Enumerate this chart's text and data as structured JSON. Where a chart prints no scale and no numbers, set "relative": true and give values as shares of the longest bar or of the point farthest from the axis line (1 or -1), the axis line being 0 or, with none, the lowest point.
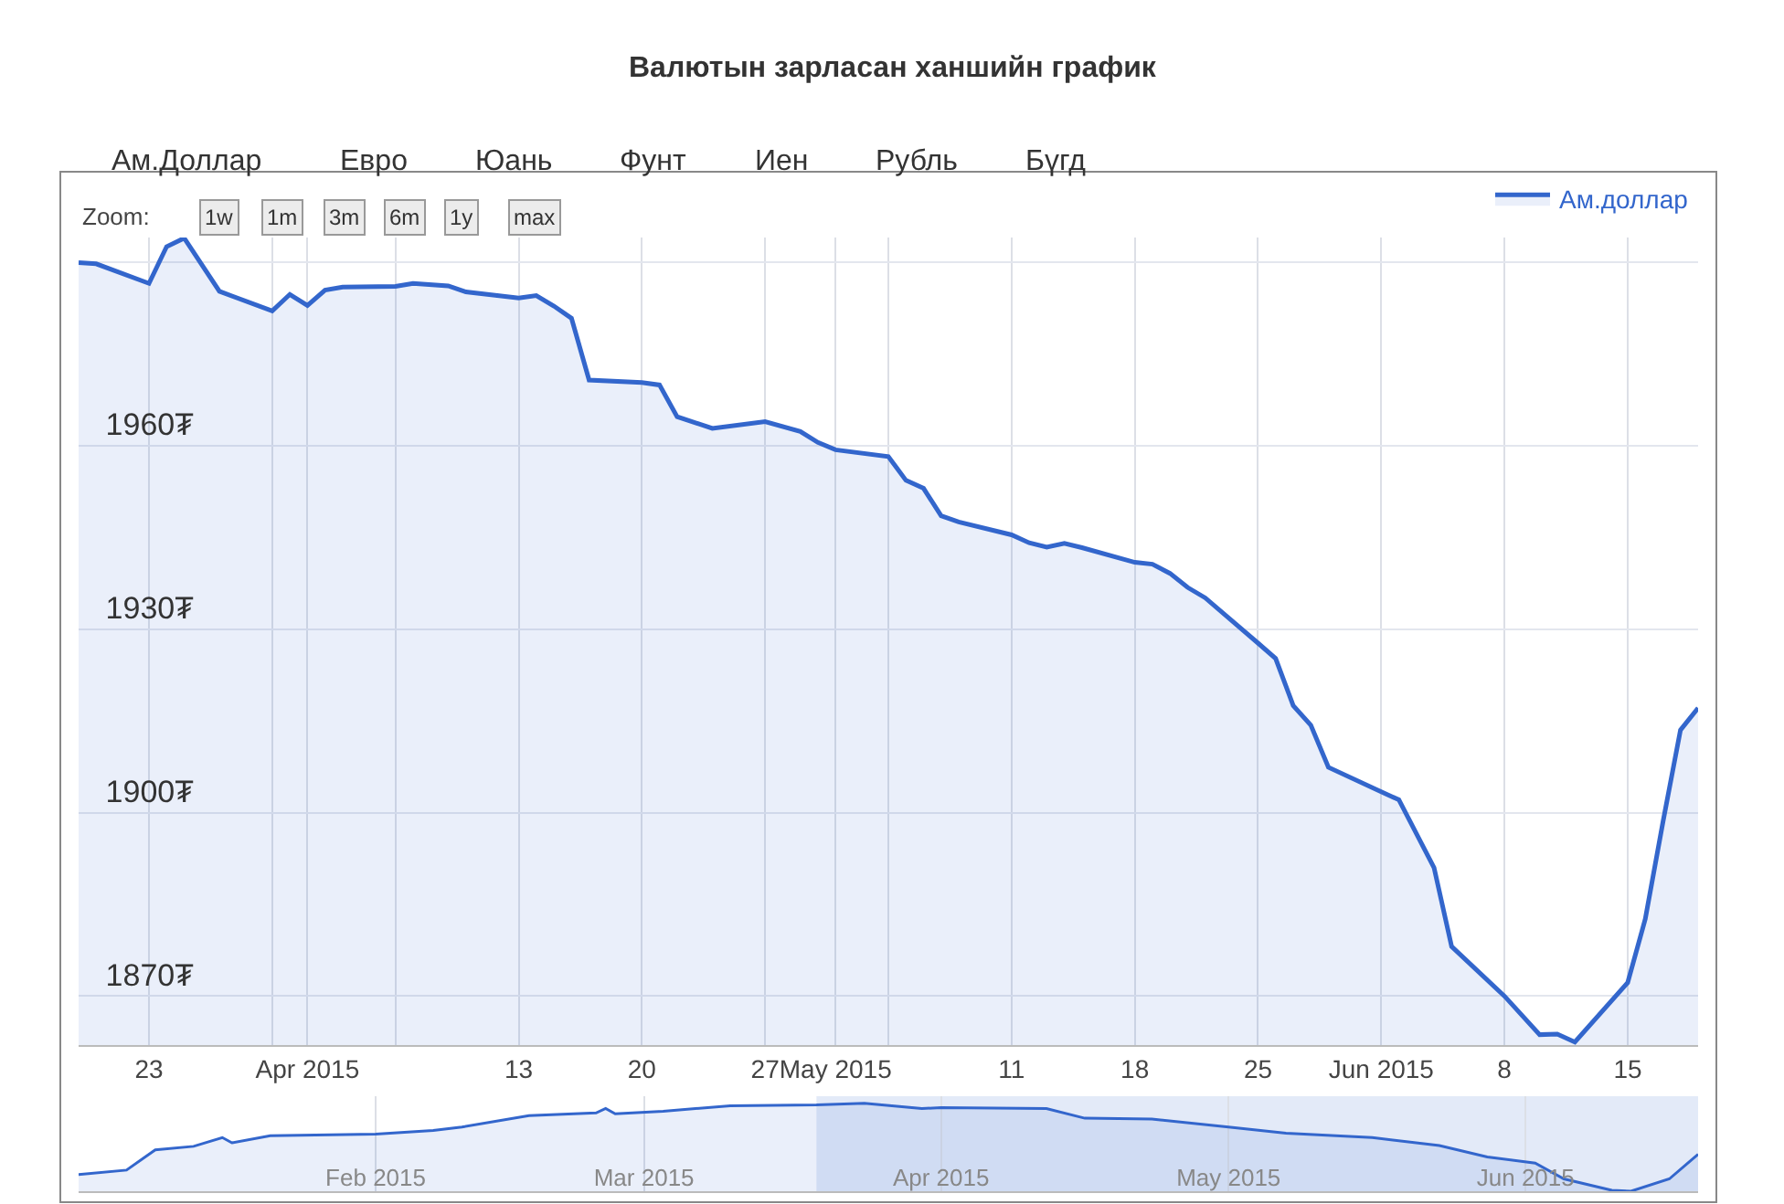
{
  "chart_data": [
    {
      "type": "area",
      "title": "Валютын зарласан ханшийн график",
      "annotations": [
        "Ам.Доллар",
        "Евро",
        "Юань",
        "Фунт",
        "Иен",
        "Рубль",
        "Бүгд",
        "Zoom:",
        "1w",
        "1m",
        "3m",
        "6m",
        "1y",
        "max"
      ],
      "x": [
        "2015-03-19",
        "2015-03-20",
        "2015-03-23",
        "2015-03-24",
        "2015-03-25",
        "2015-03-27",
        "2015-03-30",
        "2015-03-31",
        "2015-04-01",
        "2015-04-02",
        "2015-04-03",
        "2015-04-06",
        "2015-04-07",
        "2015-04-09",
        "2015-04-10",
        "2015-04-13",
        "2015-04-14",
        "2015-04-15",
        "2015-04-16",
        "2015-04-17",
        "2015-04-20",
        "2015-04-21",
        "2015-04-22",
        "2015-04-24",
        "2015-04-27",
        "2015-04-29",
        "2015-04-30",
        "2015-05-01",
        "2015-05-04",
        "2015-05-05",
        "2015-05-06",
        "2015-05-07",
        "2015-05-08",
        "2015-05-11",
        "2015-05-12",
        "2015-05-13",
        "2015-05-14",
        "2015-05-15",
        "2015-05-18",
        "2015-05-19",
        "2015-05-20",
        "2015-05-21",
        "2015-05-22",
        "2015-05-25",
        "2015-05-26",
        "2015-05-27",
        "2015-05-28",
        "2015-05-29",
        "2015-06-01",
        "2015-06-02",
        "2015-06-04",
        "2015-06-05",
        "2015-06-08",
        "2015-06-10",
        "2015-06-11",
        "2015-06-12",
        "2015-06-15",
        "2015-06-16",
        "2015-06-17",
        "2015-06-18",
        "2015-06-19"
      ],
      "series": [
        {
          "name": "Ам.доллар",
          "color": "#3366cc",
          "values": [
            1989.9,
            1989.7,
            1986.5,
            1992.5,
            1993.9,
            1985.2,
            1982.0,
            1984.7,
            1982.9,
            1985.4,
            1985.9,
            1986.0,
            1986.5,
            1986.1,
            1985.1,
            1984.1,
            1984.5,
            1982.8,
            1980.8,
            1970.7,
            1970.3,
            1969.9,
            1964.7,
            1962.8,
            1963.9,
            1962.3,
            1960.5,
            1959.3,
            1958.2,
            1954.3,
            1953.0,
            1948.5,
            1947.5,
            1945.4,
            1944.1,
            1943.4,
            1944.0,
            1943.3,
            1940.9,
            1940.6,
            1939.1,
            1936.8,
            1935.1,
            1927.7,
            1925.2,
            1917.5,
            1914.3,
            1907.4,
            1903.4,
            1902.1,
            1891.0,
            1878.1,
            1870.0,
            1863.7,
            1863.8,
            1862.5,
            1872.2,
            1882.6,
            1898.4,
            1913.5,
            1917.1
          ]
        }
      ],
      "xlim": [
        "2015-03-19",
        "2015-06-19"
      ],
      "xticks": [
        {
          "value": "2015-03-23",
          "label": "23"
        },
        {
          "value": "2015-03-30",
          "label": null
        },
        {
          "value": "2015-04-01",
          "label": "Apr 2015"
        },
        {
          "value": "2015-04-06",
          "label": null
        },
        {
          "value": "2015-04-13",
          "label": "13"
        },
        {
          "value": "2015-04-20",
          "label": "20"
        },
        {
          "value": "2015-04-27",
          "label": "27"
        },
        {
          "value": "2015-05-01",
          "label": "May 2015"
        },
        {
          "value": "2015-05-04",
          "label": null
        },
        {
          "value": "2015-05-11",
          "label": "11"
        },
        {
          "value": "2015-05-18",
          "label": "18"
        },
        {
          "value": "2015-05-25",
          "label": "25"
        },
        {
          "value": "2015-06-01",
          "label": "Jun 2015"
        },
        {
          "value": "2015-06-08",
          "label": "8"
        },
        {
          "value": "2015-06-15",
          "label": "15"
        }
      ],
      "ylim": [
        1862,
        1994
      ],
      "yticks": [
        {
          "value": 1870,
          "label": "1870₮"
        },
        {
          "value": 1900,
          "label": "1900₮"
        },
        {
          "value": 1930,
          "label": "1930₮"
        },
        {
          "value": 1960,
          "label": "1960₮"
        },
        {
          "value": 1990,
          "label": null
        }
      ],
      "grid": true,
      "legend": "top right"
    },
    {
      "type": "area",
      "relative": true,
      "x": [
        "2015-01-01",
        "2015-01-06",
        "2015-01-09",
        "2015-01-13",
        "2015-01-16",
        "2015-01-17",
        "2015-01-21",
        "2015-02-01",
        "2015-02-07",
        "2015-02-10",
        "2015-02-17",
        "2015-02-24",
        "2015-02-25",
        "2015-02-26",
        "2015-03-03",
        "2015-03-10",
        "2015-03-19",
        "2015-03-24",
        "2015-03-30",
        "2015-04-01",
        "2015-04-12",
        "2015-04-16",
        "2015-04-23",
        "2015-05-01",
        "2015-05-07",
        "2015-05-16",
        "2015-05-23",
        "2015-05-28",
        "2015-06-02",
        "2015-06-05",
        "2015-06-10",
        "2015-06-12",
        "2015-06-16",
        "2015-06-19"
      ],
      "series": [
        {
          "color": "#3366cc",
          "values": [
            0.19,
            0.24,
            0.47,
            0.51,
            0.61,
            0.55,
            0.63,
            0.65,
            0.69,
            0.73,
            0.86,
            0.89,
            0.94,
            0.88,
            0.91,
            0.97,
            0.98,
            1.0,
            0.94,
            0.95,
            0.94,
            0.83,
            0.82,
            0.73,
            0.66,
            0.61,
            0.52,
            0.39,
            0.32,
            0.14,
            0.01,
            0.0,
            0.14,
            0.42
          ]
        }
      ],
      "xlim": [
        "2015-01-01",
        "2015-06-19"
      ],
      "xticks": [
        {
          "value": "2015-02-01",
          "label": "Feb 2015"
        },
        {
          "value": "2015-03-01",
          "label": "Mar 2015"
        },
        {
          "value": "2015-04-01",
          "label": "Apr 2015"
        },
        {
          "value": "2015-05-01",
          "label": "May 2015"
        },
        {
          "value": "2015-06-01",
          "label": "Jun 2015"
        }
      ],
      "bands": [
        {
          "axis": "x",
          "from": "2015-03-19",
          "to": "2015-06-19",
          "color": "#e3eaf8"
        }
      ],
      "grid": "x",
      "tick_labels": "x"
    }
  ]
}
